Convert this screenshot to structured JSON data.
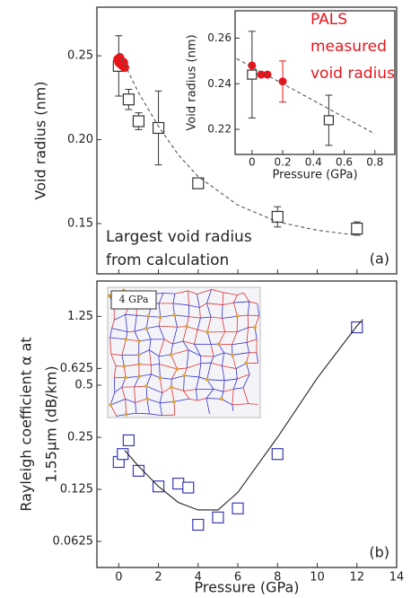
{
  "chart_data": [
    {
      "type": "scatter",
      "ylabel": "Void radius (nm)",
      "xlim": [
        -1.1,
        14
      ],
      "ylim": [
        0.12,
        0.279
      ],
      "xticks": [
        0,
        2,
        4,
        6,
        8,
        10,
        12,
        14
      ],
      "show_xtick_labels": false,
      "yticks": [
        0.15,
        {
          "value": 0.2,
          "label": "0.20"
        },
        0.25
      ],
      "annotation_lines": [
        "Largest void radius",
        "from calculation"
      ],
      "panel_label": "(a)",
      "series": [
        {
          "kind": "markers",
          "marker": "open-square",
          "color": "#333333",
          "x": [
            0,
            0.5,
            1,
            2,
            4,
            8,
            12
          ],
          "values": [
            0.244,
            0.224,
            0.211,
            0.207,
            0.174,
            0.154,
            0.147
          ],
          "errors": [
            0.018,
            0.006,
            0.005,
            0.022,
            0.003,
            0.006,
            0.004
          ]
        },
        {
          "kind": "markers",
          "marker": "filled-circle",
          "color": "#e8141b",
          "x": [
            -0.05,
            0,
            0.05,
            0.1,
            0.15,
            0.2,
            0.25,
            0.3
          ],
          "values": [
            0.248,
            0.246,
            0.249,
            0.245,
            0.247,
            0.244,
            0.246,
            0.243
          ]
        },
        {
          "kind": "line",
          "dashed": true,
          "color": "#555555",
          "x": [
            0,
            1,
            2,
            3,
            4,
            6,
            8,
            10,
            12
          ],
          "values": [
            0.252,
            0.228,
            0.208,
            0.191,
            0.178,
            0.161,
            0.151,
            0.146,
            0.143
          ]
        }
      ]
    },
    {
      "type": "scatter",
      "xlabel": "Pressure (GPa)",
      "ylabel": "Void radius (nm)",
      "xlim": [
        -0.11,
        0.93
      ],
      "ylim": [
        0.209,
        0.272
      ],
      "xticks": [
        0,
        0.2,
        0.4,
        0.6,
        0.8
      ],
      "show_xtick_labels": true,
      "yticks": [
        0.22,
        0.24,
        0.26
      ],
      "annotation_lines": [
        "PALS",
        "measured",
        "void radius"
      ],
      "annotation_color": "#e8141b",
      "series": [
        {
          "kind": "markers",
          "marker": "open-square",
          "color": "#333333",
          "x": [
            0,
            0.5
          ],
          "values": [
            0.244,
            0.224
          ],
          "errors": [
            0.019,
            0.011
          ]
        },
        {
          "kind": "markers",
          "marker": "filled-circle",
          "color": "#e8141b",
          "x": [
            0,
            0.06,
            0.1,
            0.2
          ],
          "values": [
            0.248,
            0.244,
            0.244,
            0.241
          ],
          "errors": [
            null,
            null,
            null,
            0.009
          ]
        },
        {
          "kind": "line",
          "dashed": true,
          "color": "#555555",
          "x": [
            -0.1,
            0.8
          ],
          "values": [
            0.251,
            0.218
          ]
        }
      ]
    },
    {
      "type": "scatter",
      "log_y": true,
      "xlabel": "Pressure (GPa)",
      "ylabel_lines": [
        "Rayleigh coefficient α at",
        "1.55μm (dB/km)"
      ],
      "xlim": [
        -1.1,
        14
      ],
      "ylim": [
        0.0442,
        2
      ],
      "xticks": [
        0,
        2,
        4,
        6,
        8,
        10,
        12,
        14
      ],
      "show_xtick_labels": true,
      "yticks": [
        0.0625,
        0.125,
        0.25,
        0.5,
        0.625,
        1.25
      ],
      "inset_image_label": "4 GPa",
      "panel_label": "(b)",
      "series": [
        {
          "kind": "markers",
          "marker": "open-square",
          "color": "#3a3ab4",
          "x": [
            0,
            0.2,
            0.5,
            1,
            2,
            3,
            3.5,
            4,
            5,
            6,
            8,
            12
          ],
          "values": [
            0.18,
            0.2,
            0.24,
            0.16,
            0.13,
            0.135,
            0.128,
            0.078,
            0.086,
            0.097,
            0.2,
            1.08
          ]
        },
        {
          "kind": "line",
          "dashed": false,
          "color": "#222222",
          "x": [
            0.3,
            1,
            2,
            3,
            4,
            5,
            6,
            8,
            10,
            12,
            12.3
          ],
          "values": [
            0.21,
            0.17,
            0.13,
            0.105,
            0.095,
            0.095,
            0.12,
            0.25,
            0.55,
            1.1,
            1.2
          ]
        }
      ]
    }
  ]
}
